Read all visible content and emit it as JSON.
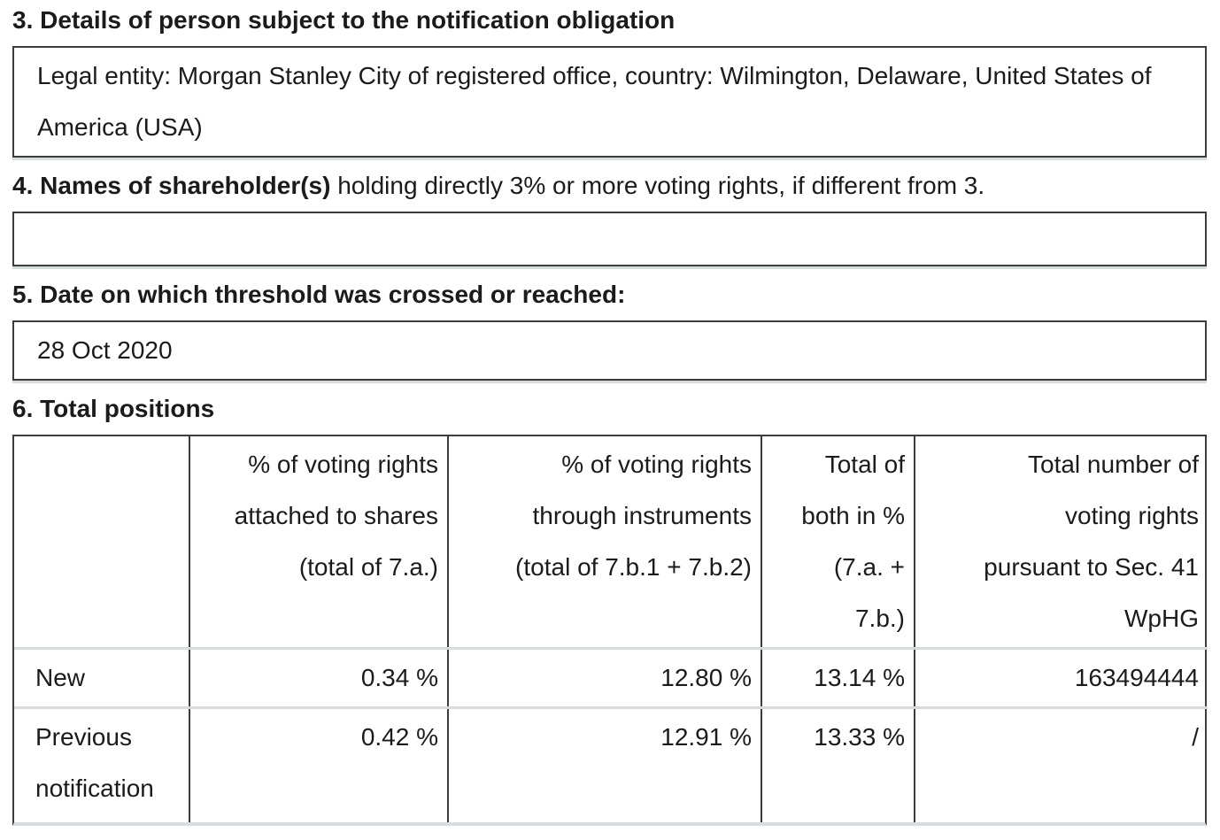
{
  "sections": {
    "s3": {
      "heading": "3. Details of person subject to the notification obligation",
      "value": "Legal entity: Morgan Stanley City of registered office, country: Wilmington, Delaware, United States of America (USA)"
    },
    "s4": {
      "heading_bold": "4. Names of shareholder(s)",
      "heading_rest": " holding directly 3% or more voting rights, if different from 3.",
      "value": ""
    },
    "s5": {
      "heading": "5. Date on which threshold was crossed or reached:",
      "value": "28 Oct 2020"
    },
    "s6": {
      "heading": "6. Total positions"
    }
  },
  "table": {
    "headers": [
      "",
      "% of voting rights\nattached to shares\n(total of 7.a.)",
      "% of voting rights\nthrough instruments\n(total of 7.b.1 + 7.b.2)",
      "Total of\nboth in %\n(7.a. +\n7.b.)",
      "Total number of\nvoting rights\npursuant to Sec. 41\nWpHG"
    ],
    "rows": [
      {
        "label": "New",
        "pct_voting_rights_shares": "0.34 %",
        "pct_voting_rights_instruments": "12.80 %",
        "pct_total_both": "13.14 %",
        "total_voting_rights": "163494444"
      },
      {
        "label": "Previous notification",
        "pct_voting_rights_shares": "0.42 %",
        "pct_voting_rights_instruments": "12.91 %",
        "pct_total_both": "13.33 %",
        "total_voting_rights": "/"
      }
    ]
  },
  "colors": {
    "border_dark": "#3c3c3c",
    "divider_light": "#d7dcdf",
    "text": "#1b1b1b",
    "background": "#ffffff"
  }
}
